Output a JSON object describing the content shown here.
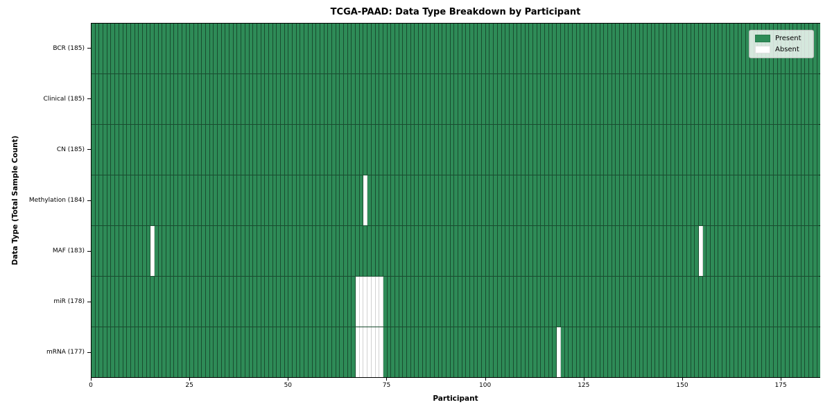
{
  "figure": {
    "background": "#ffffff"
  },
  "chart_data": {
    "type": "heatmap",
    "title": "TCGA-PAAD: Data Type Breakdown by Participant",
    "xlabel": "Participant",
    "ylabel": "Data Type (Total Sample Count)",
    "n_participants": 185,
    "x_axis": {
      "min": 0,
      "max": 185,
      "ticks": [
        0,
        25,
        50,
        75,
        100,
        125,
        150,
        175
      ]
    },
    "rows": [
      {
        "label": "BCR (185)",
        "data_type": "BCR",
        "total_samples": 185,
        "absent_participants": []
      },
      {
        "label": "Clinical (185)",
        "data_type": "Clinical",
        "total_samples": 185,
        "absent_participants": []
      },
      {
        "label": "CN (185)",
        "data_type": "CN",
        "total_samples": 185,
        "absent_participants": []
      },
      {
        "label": "Methylation (184)",
        "data_type": "Methylation",
        "total_samples": 184,
        "absent_participants": [
          69
        ]
      },
      {
        "label": "MAF (183)",
        "data_type": "MAF",
        "total_samples": 183,
        "absent_participants": [
          15,
          154
        ]
      },
      {
        "label": "miR (178)",
        "data_type": "miR",
        "total_samples": 178,
        "absent_participants": [
          67,
          68,
          69,
          70,
          71,
          72,
          73
        ]
      },
      {
        "label": "mRNA (177)",
        "data_type": "mRNA",
        "total_samples": 177,
        "absent_participants": [
          67,
          68,
          69,
          70,
          71,
          72,
          73,
          118
        ]
      }
    ],
    "legend": {
      "position": "upper right",
      "entries": [
        {
          "label": "Present",
          "color": "#2e8b57"
        },
        {
          "label": "Absent",
          "color": "#ffffff"
        }
      ]
    },
    "colors": {
      "present": "#2e8b57",
      "absent": "#ffffff",
      "cell_edge": "rgba(0,0,0,0.45)",
      "absent_cell_edge": "rgba(0,0,0,0.18)",
      "spine": "#000000"
    },
    "grid": "per-cell borders, black spines, no background grid"
  }
}
